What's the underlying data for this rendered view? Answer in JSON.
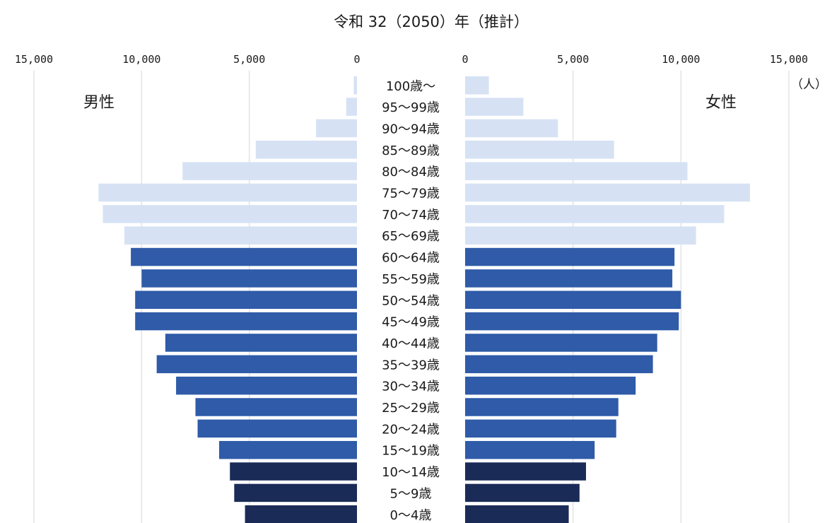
{
  "chart_data": {
    "type": "bar",
    "orientation": "horizontal-pyramid",
    "title": "令和 32（2050）年（推計）",
    "unit_label": "（人）",
    "left_label": "男性",
    "right_label": "女性",
    "xlim": [
      0,
      15000
    ],
    "ticks": [
      {
        "value": 15000,
        "label": "15,000"
      },
      {
        "value": 10000,
        "label": "10,000"
      },
      {
        "value": 5000,
        "label": "5,000"
      },
      {
        "value": 0,
        "label": "0"
      }
    ],
    "grid": true,
    "categories": [
      "100歳～",
      "95～99歳",
      "90～94歳",
      "85～89歳",
      "80～84歳",
      "75～79歳",
      "70～74歳",
      "65～69歳",
      "60～64歳",
      "55～59歳",
      "50～54歳",
      "45～49歳",
      "40～44歳",
      "35～39歳",
      "30～34歳",
      "25～29歳",
      "20～24歳",
      "15～19歳",
      "10～14歳",
      "5～9歳",
      "0～4歳"
    ],
    "series": [
      {
        "side": "left",
        "values": [
          150,
          500,
          1900,
          4700,
          8100,
          12000,
          11800,
          10800,
          10500,
          10000,
          10300,
          10300,
          8900,
          9300,
          8400,
          7500,
          7400,
          6400,
          5900,
          5700,
          5200
        ]
      },
      {
        "side": "right",
        "values": [
          1100,
          2700,
          4300,
          6900,
          10300,
          13200,
          12000,
          10700,
          9700,
          9600,
          10000,
          9900,
          8900,
          8700,
          7900,
          7100,
          7000,
          6000,
          5600,
          5300,
          4800
        ]
      }
    ],
    "age_group_colors": {
      "old": "#d6e2f4",
      "working": "#2f5ba8",
      "young": "#1b2b57"
    },
    "age_group_of_category": [
      "old",
      "old",
      "old",
      "old",
      "old",
      "old",
      "old",
      "old",
      "working",
      "working",
      "working",
      "working",
      "working",
      "working",
      "working",
      "working",
      "working",
      "working",
      "young",
      "young",
      "young"
    ]
  }
}
